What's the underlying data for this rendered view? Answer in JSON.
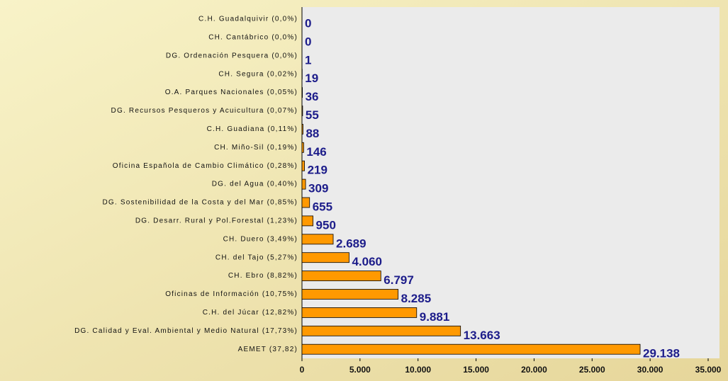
{
  "chart_data": {
    "type": "bar",
    "orientation": "horizontal",
    "categories": [
      "C.H. Guadalquivir (0,0%)",
      "CH. Cantábrico (0,0%)",
      "DG. Ordenación Pesquera (0,0%)",
      "CH. Segura (0,02%)",
      "O.A. Parques Nacionales (0,05%)",
      "DG. Recursos Pesqueros y Acuicultura (0,07%)",
      "C.H. Guadiana (0,11%)",
      "CH. Miño-Sil (0,19%)",
      "Oficina Española de Cambio Climático (0,28%)",
      "DG. del Agua (0,40%)",
      "DG. Sostenibilidad de la Costa y del Mar (0,85%)",
      "DG. Desarr. Rural y Pol.Forestal (1,23%)",
      "CH. Duero (3,49%)",
      "CH. del Tajo (5,27%)",
      "CH. Ebro (8,82%)",
      "Oficinas de Información (10,75%)",
      "C.H. del Júcar (12,82%)",
      "DG. Calidad y Eval. Ambiental y Medio Natural (17,73%)",
      "AEMET (37,82)"
    ],
    "values": [
      0,
      0,
      1,
      19,
      36,
      55,
      88,
      146,
      219,
      309,
      655,
      950,
      2689,
      4060,
      6797,
      8285,
      9881,
      13663,
      29138
    ],
    "value_labels": [
      "0",
      "0",
      "1",
      "19",
      "36",
      "55",
      "88",
      "146",
      "219",
      "309",
      "655",
      "950",
      "2.689",
      "4.060",
      "6.797",
      "8.285",
      "9.881",
      "13.663",
      "29.138"
    ],
    "color": "#ff9900",
    "xlim": [
      0,
      35000
    ],
    "xticks": [
      0,
      {
        "value": 5000,
        "label": "5.000"
      },
      {
        "value": 10000,
        "label": "10.000"
      },
      {
        "value": 15000,
        "label": "15.000"
      },
      {
        "value": 20000,
        "label": "20.000"
      },
      {
        "value": 25000,
        "label": "25.000"
      },
      {
        "value": 30000,
        "label": "30.000"
      },
      {
        "value": 35000,
        "label": "35.000"
      }
    ]
  }
}
